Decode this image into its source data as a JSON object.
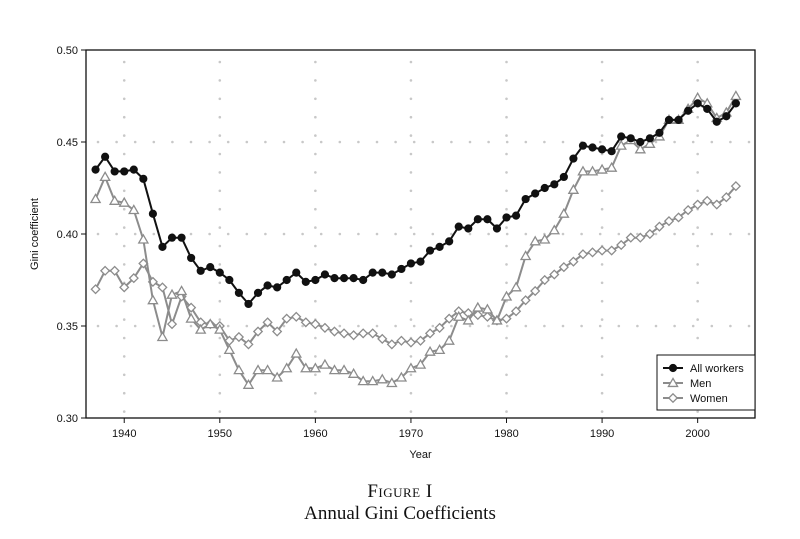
{
  "figure": {
    "label": "Figure I",
    "title": "Annual Gini Coefficients"
  },
  "chart_data": {
    "type": "line",
    "xlabel": "Year",
    "ylabel": "Gini coefficient",
    "xlim": [
      1936,
      2006
    ],
    "ylim": [
      0.3,
      0.5
    ],
    "xticks": [
      1940,
      1950,
      1960,
      1970,
      1980,
      1990,
      2000
    ],
    "yticks": [
      0.3,
      0.35,
      0.4,
      0.45,
      0.5
    ],
    "xtick_labels": [
      "1940",
      "1950",
      "1960",
      "1970",
      "1980",
      "1990",
      "2000"
    ],
    "ytick_labels": [
      "0.30",
      "0.35",
      "0.40",
      "0.45",
      "0.50"
    ],
    "grid": "dotted",
    "legend": "bottom-right",
    "x": [
      1937,
      1938,
      1939,
      1940,
      1941,
      1942,
      1943,
      1944,
      1945,
      1946,
      1947,
      1948,
      1949,
      1950,
      1951,
      1952,
      1953,
      1954,
      1955,
      1956,
      1957,
      1958,
      1959,
      1960,
      1961,
      1962,
      1963,
      1964,
      1965,
      1966,
      1967,
      1968,
      1969,
      1970,
      1971,
      1972,
      1973,
      1974,
      1975,
      1976,
      1977,
      1978,
      1979,
      1980,
      1981,
      1982,
      1983,
      1984,
      1985,
      1986,
      1987,
      1988,
      1989,
      1990,
      1991,
      1992,
      1993,
      1994,
      1995,
      1996,
      1997,
      1998,
      1999,
      2000,
      2001,
      2002,
      2003,
      2004
    ],
    "series": [
      {
        "name": "All workers",
        "color": "#111111",
        "marker": "circle",
        "values": [
          0.435,
          0.442,
          0.434,
          0.434,
          0.435,
          0.43,
          0.411,
          0.393,
          0.398,
          0.398,
          0.387,
          0.38,
          0.382,
          0.379,
          0.375,
          0.368,
          0.362,
          0.368,
          0.372,
          0.371,
          0.375,
          0.379,
          0.374,
          0.375,
          0.378,
          0.376,
          0.376,
          0.376,
          0.375,
          0.379,
          0.379,
          0.378,
          0.381,
          0.384,
          0.385,
          0.391,
          0.393,
          0.396,
          0.404,
          0.403,
          0.408,
          0.408,
          0.403,
          0.409,
          0.41,
          0.419,
          0.422,
          0.425,
          0.427,
          0.431,
          0.441,
          0.448,
          0.447,
          0.446,
          0.445,
          0.453,
          0.452,
          0.45,
          0.452,
          0.455,
          0.462,
          0.462,
          0.467,
          0.471,
          0.468,
          0.461,
          0.464,
          0.471
        ]
      },
      {
        "name": "Men",
        "color": "#8c8c8c",
        "marker": "triangle",
        "values": [
          0.419,
          0.431,
          0.418,
          0.417,
          0.413,
          0.397,
          0.364,
          0.344,
          0.367,
          0.369,
          0.354,
          0.348,
          0.351,
          0.348,
          0.337,
          0.326,
          0.318,
          0.326,
          0.326,
          0.322,
          0.327,
          0.335,
          0.327,
          0.327,
          0.329,
          0.326,
          0.326,
          0.324,
          0.32,
          0.32,
          0.321,
          0.319,
          0.322,
          0.327,
          0.329,
          0.336,
          0.337,
          0.342,
          0.355,
          0.353,
          0.36,
          0.359,
          0.353,
          0.366,
          0.371,
          0.388,
          0.396,
          0.397,
          0.402,
          0.411,
          0.424,
          0.434,
          0.434,
          0.435,
          0.436,
          0.448,
          0.451,
          0.446,
          0.449,
          0.453,
          0.462,
          0.462,
          0.468,
          0.474,
          0.471,
          0.463,
          0.466,
          0.475
        ]
      },
      {
        "name": "Women",
        "color": "#8c8c8c",
        "marker": "diamond",
        "values": [
          0.37,
          0.38,
          0.38,
          0.371,
          0.376,
          0.384,
          0.374,
          0.371,
          0.351,
          0.366,
          0.36,
          0.352,
          0.351,
          0.35,
          0.342,
          0.344,
          0.34,
          0.347,
          0.352,
          0.347,
          0.354,
          0.355,
          0.352,
          0.351,
          0.349,
          0.347,
          0.346,
          0.345,
          0.346,
          0.346,
          0.343,
          0.34,
          0.342,
          0.341,
          0.342,
          0.346,
          0.349,
          0.354,
          0.358,
          0.357,
          0.356,
          0.355,
          0.353,
          0.354,
          0.358,
          0.364,
          0.369,
          0.375,
          0.378,
          0.382,
          0.385,
          0.389,
          0.39,
          0.391,
          0.391,
          0.394,
          0.398,
          0.398,
          0.4,
          0.404,
          0.407,
          0.409,
          0.413,
          0.416,
          0.418,
          0.416,
          0.42,
          0.426
        ]
      }
    ]
  }
}
